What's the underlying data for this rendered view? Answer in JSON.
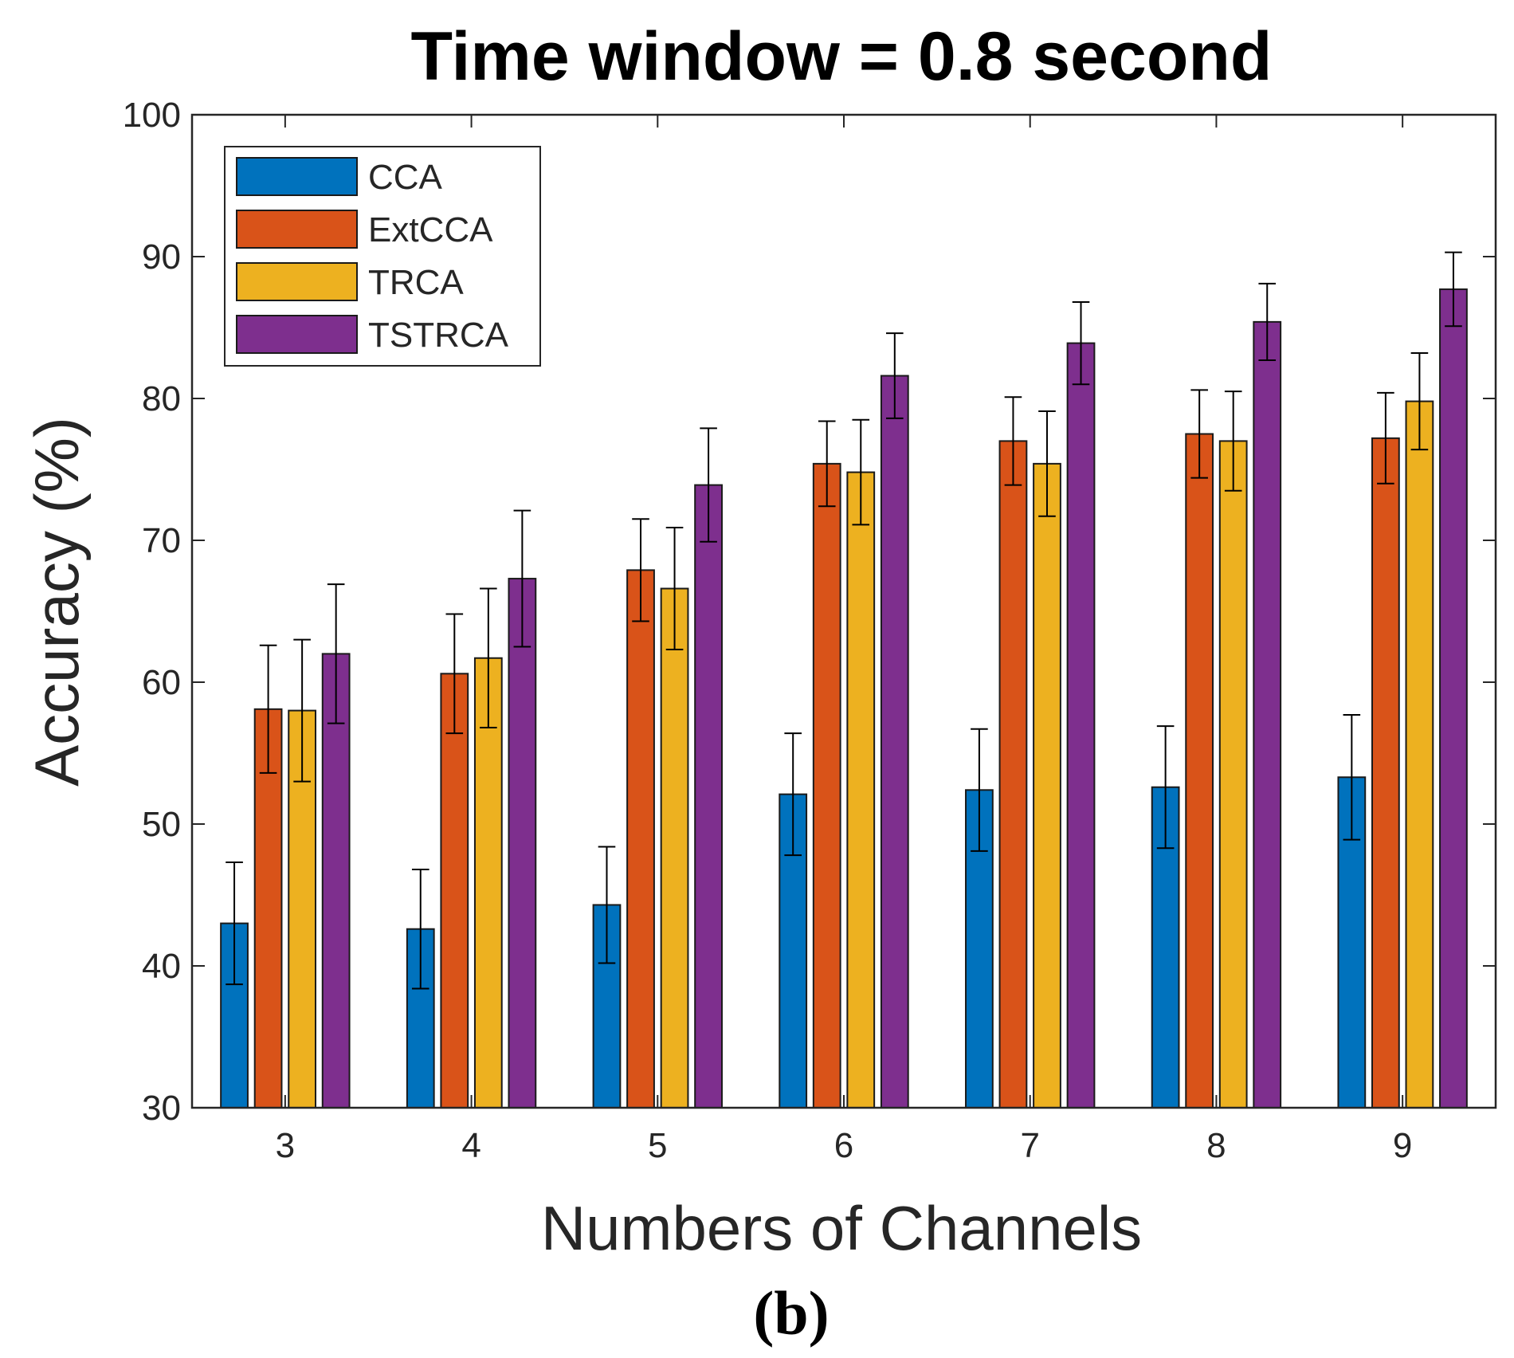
{
  "figure": {
    "caption": "(b)"
  },
  "chart_data": {
    "type": "bar",
    "title": "Time window = 0.8 second",
    "xlabel": "Numbers of Channels",
    "ylabel": "Accuracy (%)",
    "ylim": [
      30,
      100
    ],
    "yticks": [
      30,
      40,
      50,
      60,
      70,
      80,
      90,
      100
    ],
    "categories": [
      "3",
      "4",
      "5",
      "6",
      "7",
      "8",
      "9"
    ],
    "legend_position": "top-left",
    "series": [
      {
        "name": "CCA",
        "color": "#0072bd",
        "values": [
          43.0,
          42.6,
          44.3,
          52.1,
          52.4,
          52.6,
          53.3
        ],
        "errors": [
          4.3,
          4.2,
          4.1,
          4.3,
          4.3,
          4.3,
          4.4
        ]
      },
      {
        "name": "ExtCCA",
        "color": "#d95319",
        "values": [
          58.1,
          60.6,
          67.9,
          75.4,
          77.0,
          77.5,
          77.2
        ],
        "errors": [
          4.5,
          4.2,
          3.6,
          3.0,
          3.1,
          3.1,
          3.2
        ]
      },
      {
        "name": "TRCA",
        "color": "#edb120",
        "values": [
          58.0,
          61.7,
          66.6,
          74.8,
          75.4,
          77.0,
          79.8
        ],
        "errors": [
          5.0,
          4.9,
          4.3,
          3.7,
          3.7,
          3.5,
          3.4
        ]
      },
      {
        "name": "TSTRCA",
        "color": "#7e2f8e",
        "values": [
          62.0,
          67.3,
          73.9,
          81.6,
          83.9,
          85.4,
          87.7
        ],
        "errors": [
          4.9,
          4.8,
          4.0,
          3.0,
          2.9,
          2.7,
          2.6
        ]
      }
    ]
  }
}
